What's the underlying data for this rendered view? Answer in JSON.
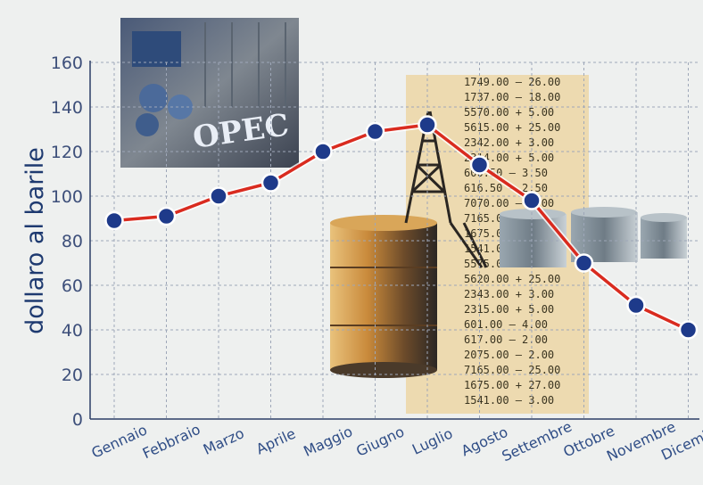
{
  "chart_data": {
    "type": "line",
    "title": "",
    "xlabel": "",
    "ylabel": "dollaro al barile",
    "categories": [
      "Gennaio",
      "Febbraio",
      "Marzo",
      "Aprile",
      "Maggio",
      "Giugno",
      "Luglio",
      "Agosto",
      "Settembre",
      "Ottobre",
      "Novembre",
      "Dicembre"
    ],
    "series": [
      {
        "values": [
          89,
          91,
          100,
          106,
          120,
          129,
          132,
          114,
          98,
          70,
          51,
          40
        ]
      }
    ],
    "yticks": [
      0,
      20,
      40,
      60,
      80,
      100,
      120,
      140,
      160
    ],
    "ylim": [
      0,
      160
    ],
    "grid": true,
    "line_color": "#d92b1f",
    "marker_color": "#1e3a8a"
  },
  "illustration": {
    "logo_text": "OPEC",
    "sheet_rows": [
      "1749.00 — 26.00",
      "1737.00 — 18.00",
      "5570.00 + 5.00",
      "5615.00 + 25.00",
      "2342.00 + 3.00",
      "2314.00 + 5.00",
      "600.50 — 3.50",
      "616.50 — 2.50",
      "7070.00 — 6.00",
      "7165.00",
      "1675.00",
      "1541.00",
      "5575.00 + 5.00",
      "5620.00 + 25.00",
      "2343.00 + 3.00",
      "2315.00 + 5.00",
      "601.00 — 4.00",
      "617.00 — 2.00",
      "2075.00 — 2.00",
      "7165.00 — 25.00",
      "1675.00 + 27.00",
      "1541.00 — 3.00"
    ]
  }
}
